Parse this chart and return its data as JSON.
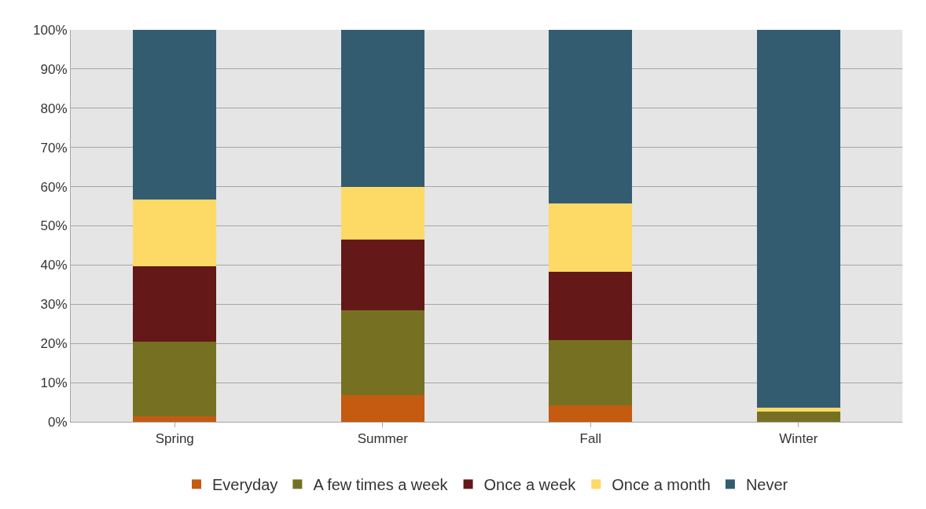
{
  "chart_data": {
    "type": "bar",
    "stacked": true,
    "categories": [
      "Spring",
      "Summer",
      "Fall",
      "Winter"
    ],
    "series": [
      {
        "name": "Everyday",
        "color": "#c55a11",
        "values": [
          1.5,
          6.8,
          4.2,
          0
        ]
      },
      {
        "name": "A few times a week",
        "color": "#767122",
        "values": [
          19,
          21.6,
          16.6,
          2.7
        ]
      },
      {
        "name": "Once a week",
        "color": "#641818",
        "values": [
          19.1,
          18.1,
          17.4,
          0
        ]
      },
      {
        "name": "Once a month",
        "color": "#fdd966",
        "values": [
          17.2,
          13.5,
          17.6,
          1
        ]
      },
      {
        "name": "Never",
        "color": "#345c71",
        "values": [
          43.2,
          40,
          44.2,
          96.3
        ]
      }
    ],
    "ylim": [
      0,
      100
    ],
    "yticks": [
      {
        "value": 0,
        "label": "0%"
      },
      {
        "value": 10,
        "label": "10%"
      },
      {
        "value": 20,
        "label": "20%"
      },
      {
        "value": 30,
        "label": "30%"
      },
      {
        "value": 40,
        "label": "40%"
      },
      {
        "value": 50,
        "label": "50%"
      },
      {
        "value": 60,
        "label": "60%"
      },
      {
        "value": 70,
        "label": "70%"
      },
      {
        "value": 80,
        "label": "80%"
      },
      {
        "value": 90,
        "label": "90%"
      },
      {
        "value": 100,
        "label": "100%"
      }
    ],
    "grid": "y",
    "legend": "bottom"
  }
}
